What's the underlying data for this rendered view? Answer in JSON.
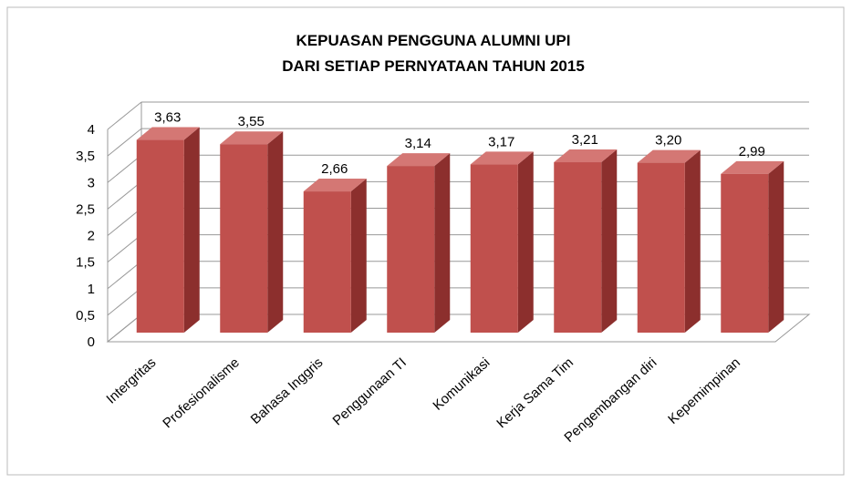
{
  "chart_data": {
    "type": "bar3d",
    "title": [
      "KEPUASAN PENGGUNA  ALUMNI UPI",
      "DARI SETIAP PERNYATAAN TAHUN 2015"
    ],
    "categories": [
      "Intergritas",
      "Profesionalisme",
      "Bahasa Inggris",
      "Penggunaan TI",
      "Komunikasi",
      "Kerja Sama Tim",
      "Pengembangan diri",
      "Kepemimpinan"
    ],
    "values": [
      3.63,
      3.55,
      2.66,
      3.14,
      3.17,
      3.21,
      3.2,
      2.99
    ],
    "value_labels": [
      "3,63",
      "3,55",
      "2,66",
      "3,14",
      "3,17",
      "3,21",
      "3,20",
      "2,99"
    ],
    "color": "#c0504d",
    "ylim": [
      0,
      4
    ],
    "yticks": [
      0,
      {
        "value": 0.5,
        "label": "0,5"
      },
      1,
      {
        "value": 1.5,
        "label": "1,5"
      },
      2,
      {
        "value": 2.5,
        "label": "2,5"
      },
      3,
      {
        "value": 3.5,
        "label": "3,5"
      },
      4
    ],
    "grid": true
  }
}
